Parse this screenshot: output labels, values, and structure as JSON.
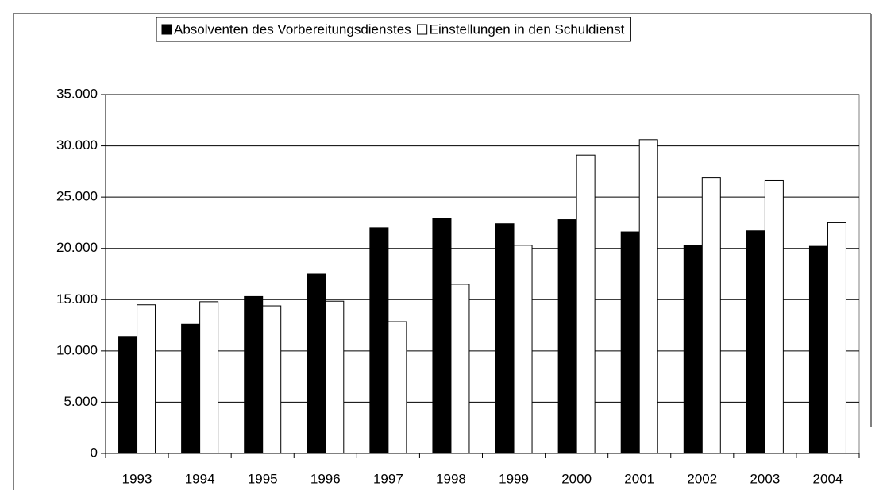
{
  "chart_data": {
    "type": "bar",
    "categories": [
      "1993",
      "1994",
      "1995",
      "1996",
      "1997",
      "1998",
      "1999",
      "2000",
      "2001",
      "2002",
      "2003",
      "2004"
    ],
    "series": [
      {
        "name": "Absolventen des Vorbereitungsdienstes",
        "color": "#000000",
        "values": [
          11400,
          12600,
          15300,
          17500,
          22000,
          22900,
          22400,
          22800,
          21600,
          20300,
          21700,
          20200
        ]
      },
      {
        "name": "Einstellungen in den Schuldienst",
        "color": "#ffffff",
        "values": [
          14500,
          14800,
          14400,
          14850,
          12850,
          16500,
          20300,
          29100,
          30600,
          26900,
          26600,
          22500
        ]
      }
    ],
    "ylim": [
      0,
      35000
    ],
    "yticks": [
      0,
      {
        "value": 5000,
        "label": "5.000"
      },
      {
        "value": 10000,
        "label": "10.000"
      },
      {
        "value": 15000,
        "label": "15.000"
      },
      {
        "value": 20000,
        "label": "20.000"
      },
      {
        "value": 25000,
        "label": "25.000"
      },
      {
        "value": 30000,
        "label": "30.000"
      },
      {
        "value": 35000,
        "label": "35.000"
      }
    ],
    "grid": true,
    "legend": "top"
  }
}
